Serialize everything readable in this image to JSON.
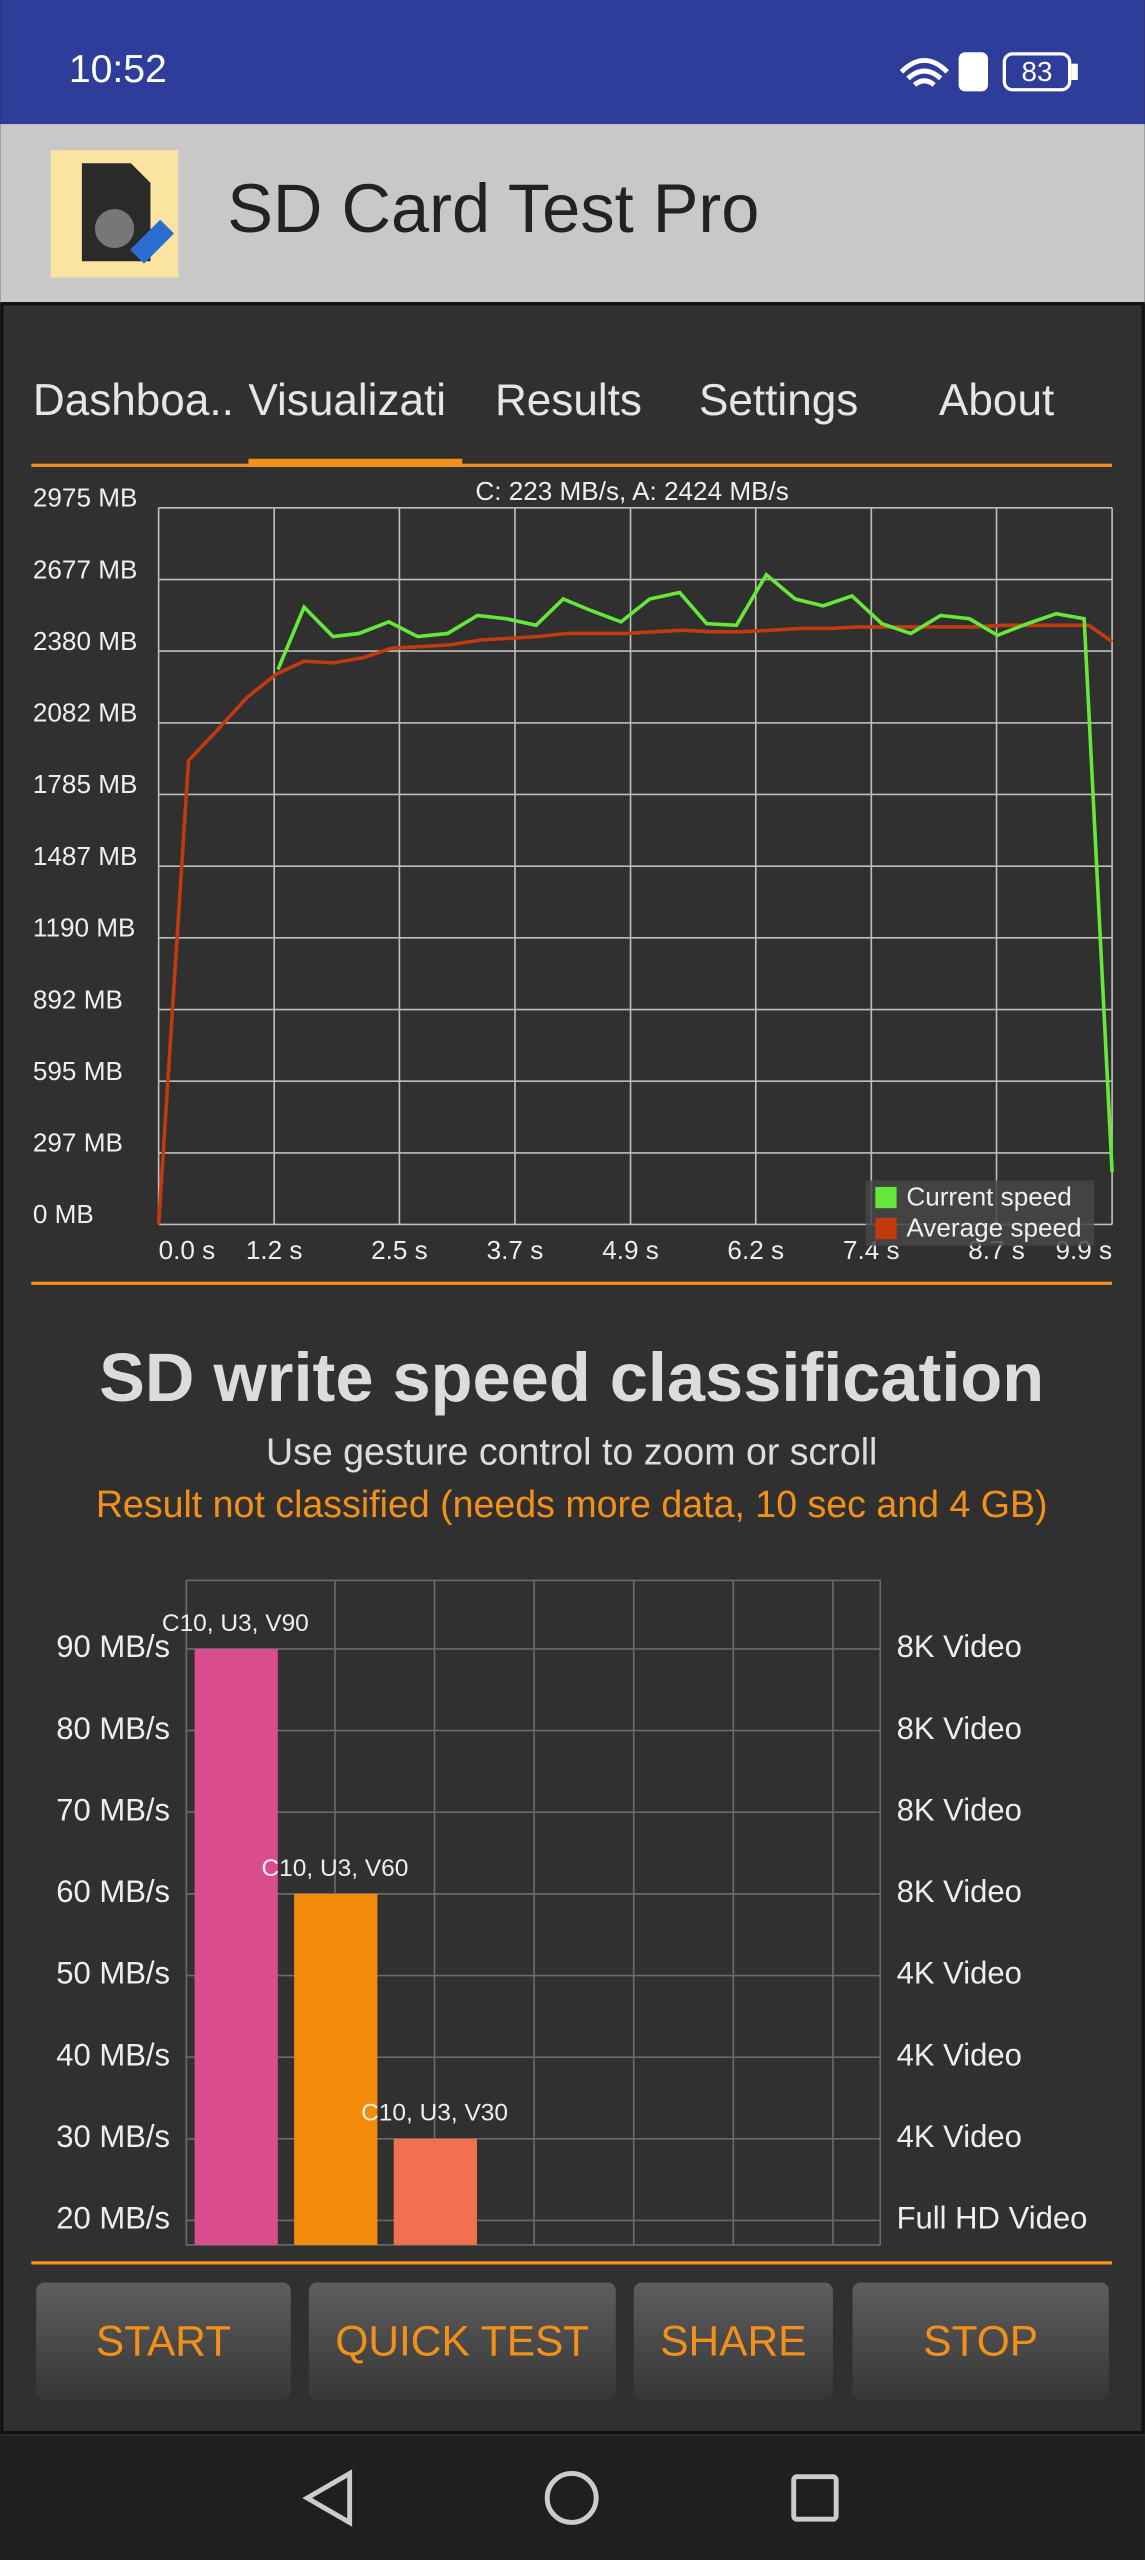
{
  "status_bar": {
    "time": "10:52",
    "battery": "83"
  },
  "app_bar": {
    "title": "SD Card Test Pro"
  },
  "tabs": [
    "Dashboa..",
    "Visualizati",
    "Results",
    "Settings",
    "About"
  ],
  "speed_chart": {
    "type": "line",
    "annotation": "C: 223 MB/s, A: 2424 MB/s",
    "xlim": [
      0,
      9.9
    ],
    "xticks": [
      {
        "value": 0,
        "label": "0.0 s"
      },
      {
        "value": 1.2,
        "label": "1.2 s"
      },
      {
        "value": 2.5,
        "label": "2.5 s"
      },
      {
        "value": 3.7,
        "label": "3.7 s"
      },
      {
        "value": 4.9,
        "label": "4.9 s"
      },
      {
        "value": 6.2,
        "label": "6.2 s"
      },
      {
        "value": 7.4,
        "label": "7.4 s"
      },
      {
        "value": 8.7,
        "label": "8.7 s"
      },
      {
        "value": 9.9,
        "label": "9.9 s"
      }
    ],
    "ylim": [
      0,
      2975
    ],
    "yticks": [
      {
        "value": 0,
        "label": "0 MB"
      },
      {
        "value": 297,
        "label": "297 MB"
      },
      {
        "value": 595,
        "label": "595 MB"
      },
      {
        "value": 892,
        "label": "892 MB"
      },
      {
        "value": 1190,
        "label": "1190 MB"
      },
      {
        "value": 1487,
        "label": "1487 MB"
      },
      {
        "value": 1785,
        "label": "1785 MB"
      },
      {
        "value": 2082,
        "label": "2082 MB"
      },
      {
        "value": 2380,
        "label": "2380 MB"
      },
      {
        "value": 2677,
        "label": "2677 MB"
      },
      {
        "value": 2975,
        "label": "2975 MB"
      }
    ],
    "grid": true,
    "legend": "bottom-right",
    "series": [
      {
        "name": "Current speed",
        "color": "#66e83a",
        "x": [
          1.24,
          1.51,
          1.81,
          2.08,
          2.39,
          2.69,
          3.0,
          3.31,
          3.61,
          3.92,
          4.2,
          4.49,
          4.8,
          5.1,
          5.41,
          5.69,
          6.0,
          6.31,
          6.61,
          6.9,
          7.2,
          7.51,
          7.81,
          8.12,
          8.42,
          8.71,
          9.02,
          9.32,
          9.61,
          9.9
        ],
        "values": [
          2304,
          2562,
          2440,
          2453,
          2501,
          2440,
          2453,
          2528,
          2514,
          2487,
          2596,
          2548,
          2501,
          2596,
          2623,
          2494,
          2487,
          2697,
          2596,
          2568,
          2609,
          2494,
          2453,
          2528,
          2514,
          2446,
          2494,
          2535,
          2514,
          217
        ]
      },
      {
        "name": "Average speed",
        "color": "#c23a10",
        "x": [
          0,
          0.31,
          0.61,
          0.92,
          1.22,
          1.51,
          1.81,
          2.12,
          2.42,
          2.73,
          3.03,
          3.34,
          3.63,
          3.93,
          4.24,
          4.54,
          4.85,
          5.15,
          5.44,
          5.75,
          6.05,
          6.36,
          6.66,
          6.97,
          7.27,
          7.56,
          7.86,
          8.17,
          8.47,
          8.78,
          9.07,
          9.37,
          9.66,
          9.9
        ],
        "values": [
          0,
          1925,
          2053,
          2189,
          2284,
          2338,
          2331,
          2352,
          2392,
          2399,
          2406,
          2426,
          2433,
          2440,
          2453,
          2453,
          2453,
          2460,
          2467,
          2460,
          2460,
          2467,
          2474,
          2474,
          2480,
          2480,
          2480,
          2480,
          2480,
          2487,
          2487,
          2487,
          2487,
          2419
        ]
      }
    ]
  },
  "classification": {
    "title": "SD write speed classification",
    "hint": "Use gesture control to zoom or scroll",
    "status": "Result not classified (needs more data, 10 sec and 4 GB)"
  },
  "class_chart": {
    "type": "bar",
    "categories": [
      "C10, U3, V90",
      "C10, U3, V60",
      "C10, U3, V30"
    ],
    "values": [
      90,
      60,
      30
    ],
    "colors": [
      "#d94d8f",
      "#f28c0a",
      "#f07050"
    ],
    "ylim": [
      17,
      98.4
    ],
    "yticks": [
      {
        "value": 20,
        "label": "20 MB/s"
      },
      {
        "value": 30,
        "label": "30 MB/s"
      },
      {
        "value": 40,
        "label": "40 MB/s"
      },
      {
        "value": 50,
        "label": "50 MB/s"
      },
      {
        "value": 60,
        "label": "60 MB/s"
      },
      {
        "value": 70,
        "label": "70 MB/s"
      },
      {
        "value": 80,
        "label": "80 MB/s"
      },
      {
        "value": 90,
        "label": "90 MB/s"
      }
    ],
    "right_labels": [
      "Full HD Video",
      "4K Video",
      "4K Video",
      "4K Video",
      "8K Video",
      "8K Video",
      "8K Video",
      "8K Video"
    ],
    "grid": true
  },
  "buttons": [
    "START",
    "QUICK TEST",
    "SHARE",
    "STOP"
  ]
}
